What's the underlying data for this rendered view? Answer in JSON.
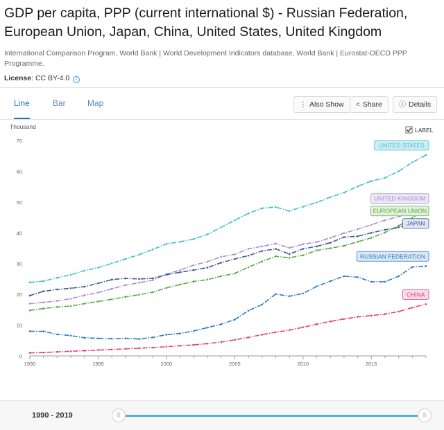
{
  "page": {
    "title": "GDP per capita, PPP (current international $) - Russian Federation, European Union, Japan, China, United States, United Kingdom",
    "source": "International Comparison Program, World Bank | World Development Indicators database, World Bank | Eurostat-OECD PPP Programme.",
    "license_label": "License",
    "license_value": ": CC BY-4.0",
    "info_icon": "i"
  },
  "tabs": [
    {
      "label": "Line",
      "active": true
    },
    {
      "label": "Bar",
      "active": false
    },
    {
      "label": "Map",
      "active": false
    }
  ],
  "toolbar": {
    "also_show": "Also Show",
    "share": "Share",
    "details": "Details",
    "label_toggle": "LABEL"
  },
  "footer": {
    "range": "1990 - 2019",
    "slider_start": 1990,
    "slider_end": 2019
  },
  "chart_data": {
    "type": "line",
    "ylabel": "Thousand",
    "ylim": [
      0,
      70
    ],
    "yticks": [
      0,
      10,
      20,
      30,
      40,
      50,
      60,
      70
    ],
    "xlim": [
      1990,
      2019
    ],
    "xticks": [
      1990,
      1995,
      2000,
      2005,
      2010,
      2015
    ],
    "grid": false,
    "x": [
      1990,
      1991,
      1992,
      1993,
      1994,
      1995,
      1996,
      1997,
      1998,
      1999,
      2000,
      2001,
      2002,
      2003,
      2004,
      2005,
      2006,
      2007,
      2008,
      2009,
      2010,
      2011,
      2012,
      2013,
      2014,
      2015,
      2016,
      2017,
      2018,
      2019
    ],
    "series": [
      {
        "name": "UNITED STATES",
        "color": "#41bccf",
        "label_bg": "#cfeef2",
        "values": [
          23.9,
          24.3,
          25.4,
          26.4,
          27.7,
          28.7,
          30.1,
          31.5,
          32.9,
          34.6,
          36.4,
          37.1,
          38.0,
          39.5,
          41.8,
          44.1,
          46.3,
          48.0,
          48.4,
          47.1,
          48.5,
          49.9,
          51.6,
          53.1,
          55.1,
          56.8,
          57.9,
          60.0,
          62.9,
          65.3
        ]
      },
      {
        "name": "UNITED KINGDOM",
        "color": "#a58fcd",
        "label_bg": "#ece6f5",
        "values": [
          17.0,
          17.4,
          17.9,
          18.6,
          19.7,
          20.6,
          21.8,
          23.0,
          23.8,
          24.6,
          26.6,
          27.9,
          29.5,
          30.6,
          32.2,
          33.0,
          34.8,
          35.6,
          36.5,
          35.1,
          36.3,
          37.0,
          38.4,
          39.9,
          41.2,
          42.6,
          44.1,
          45.3,
          46.6,
          48.0
        ]
      },
      {
        "name": "EUROPEAN UNION",
        "color": "#58a845",
        "label_bg": "#e3f1dd",
        "values": [
          14.8,
          15.4,
          15.9,
          16.2,
          17.0,
          17.7,
          18.4,
          19.2,
          19.9,
          20.7,
          22.1,
          23.2,
          24.2,
          24.8,
          25.9,
          26.8,
          28.8,
          30.7,
          32.4,
          31.9,
          32.7,
          34.3,
          35.0,
          35.8,
          37.1,
          38.4,
          40.1,
          42.3,
          44.9,
          47.8
        ]
      },
      {
        "name": "JAPAN",
        "color": "#3c5a93",
        "label_bg": "#dfe5f2",
        "values": [
          19.6,
          21.0,
          21.6,
          22.0,
          22.5,
          23.6,
          24.8,
          25.2,
          25.0,
          25.2,
          26.4,
          27.2,
          27.9,
          28.7,
          30.3,
          31.5,
          32.6,
          34.1,
          34.8,
          33.1,
          34.8,
          35.6,
          36.8,
          38.6,
          38.9,
          40.0,
          41.0,
          41.8,
          42.9,
          43.2
        ]
      },
      {
        "name": "RUSSIAN FEDERATION",
        "color": "#2f7bbf",
        "label_bg": "#dbe9f6",
        "values": [
          8.0,
          8.0,
          7.0,
          6.6,
          5.9,
          5.7,
          5.6,
          5.7,
          5.5,
          6.0,
          6.9,
          7.3,
          8.1,
          9.2,
          10.3,
          11.8,
          14.7,
          16.7,
          20.1,
          19.4,
          20.3,
          22.6,
          24.3,
          25.9,
          25.6,
          24.1,
          24.1,
          25.9,
          28.9,
          29.2
        ]
      },
      {
        "name": "CHINA",
        "color": "#e0427c",
        "label_bg": "#fadbe7",
        "values": [
          1.0,
          1.1,
          1.3,
          1.5,
          1.7,
          1.9,
          2.1,
          2.3,
          2.5,
          2.7,
          3.0,
          3.3,
          3.6,
          4.0,
          4.5,
          5.2,
          6.0,
          6.9,
          7.7,
          8.4,
          9.3,
          10.3,
          11.2,
          12.0,
          12.7,
          13.1,
          13.6,
          14.4,
          15.7,
          16.8
        ]
      }
    ]
  }
}
